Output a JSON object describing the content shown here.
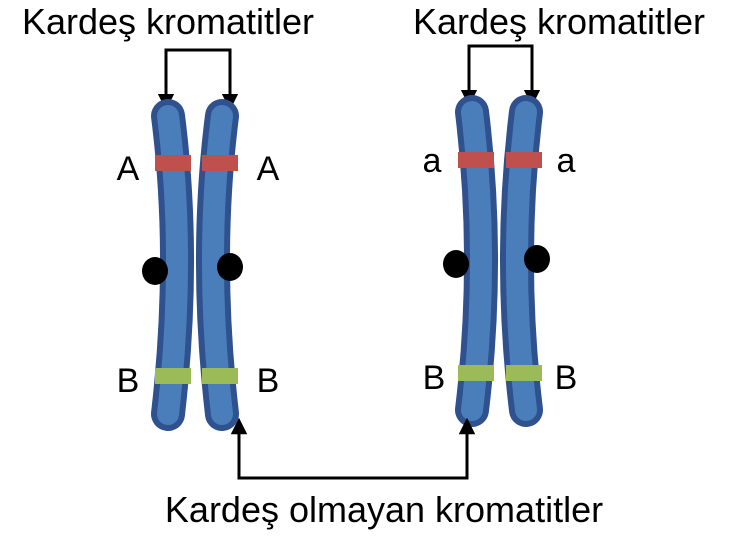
{
  "labels": {
    "sister_left": "Kardeş kromatitler",
    "sister_right": "Kardeş kromatitler",
    "non_sister": "Kardeş olmayan kromatitler"
  },
  "alleles": {
    "left_top_outer": "A",
    "left_top_inner": "A",
    "left_bottom_outer": "B",
    "left_bottom_inner": "B",
    "right_top_outer": "a",
    "right_top_inner": "a",
    "right_bottom_outer": "B",
    "right_bottom_inner": "B"
  },
  "colors": {
    "chromatid_fill": "#4a7ebb",
    "chromatid_outline": "#2f528f",
    "gene_red": "#c0504d",
    "gene_green": "#9bbb59",
    "centromere": "#000000",
    "arrow": "#000000"
  }
}
